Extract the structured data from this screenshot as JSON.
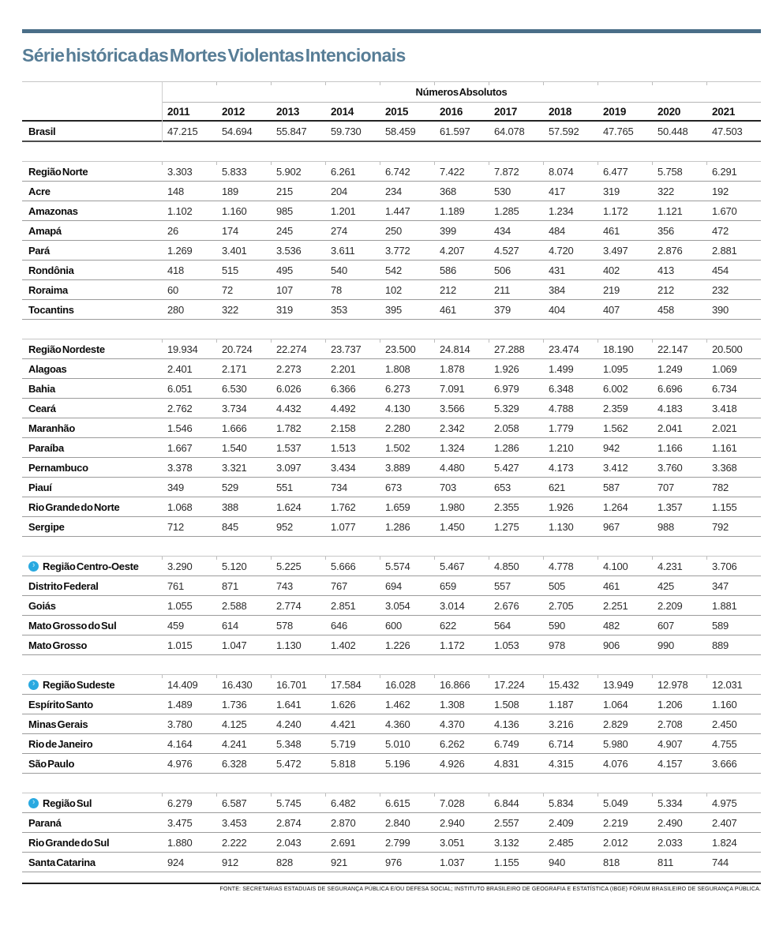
{
  "colors": {
    "accent_bar": "#4a6e88",
    "title": "#577d96",
    "region_icon": "#29a9e0",
    "region_icon_glyph": "#9edcf5"
  },
  "chart_data": {
    "type": "table",
    "title": "Série histórica das Mortes Violentas Intencionais",
    "group_header": "Números Absolutos",
    "columns": [
      "2011",
      "2012",
      "2013",
      "2014",
      "2015",
      "2016",
      "2017",
      "2018",
      "2019",
      "2020",
      "2021"
    ],
    "brasil": {
      "label": "Brasil",
      "values": [
        "47.215",
        "54.694",
        "55.847",
        "59.730",
        "58.459",
        "61.597",
        "64.078",
        "57.592",
        "47.765",
        "50.448",
        "47.503"
      ]
    },
    "sections": [
      {
        "region": {
          "label": "Região Norte",
          "icon": false,
          "values": [
            "3.303",
            "5.833",
            "5.902",
            "6.261",
            "6.742",
            "7.422",
            "7.872",
            "8.074",
            "6.477",
            "5.758",
            "6.291"
          ]
        },
        "states": [
          {
            "label": "Acre",
            "values": [
              "148",
              "189",
              "215",
              "204",
              "234",
              "368",
              "530",
              "417",
              "319",
              "322",
              "192"
            ]
          },
          {
            "label": "Amazonas",
            "values": [
              "1.102",
              "1.160",
              "985",
              "1.201",
              "1.447",
              "1.189",
              "1.285",
              "1.234",
              "1.172",
              "1.121",
              "1.670"
            ]
          },
          {
            "label": "Amapá",
            "values": [
              "26",
              "174",
              "245",
              "274",
              "250",
              "399",
              "434",
              "484",
              "461",
              "356",
              "472"
            ]
          },
          {
            "label": "Pará",
            "values": [
              "1.269",
              "3.401",
              "3.536",
              "3.611",
              "3.772",
              "4.207",
              "4.527",
              "4.720",
              "3.497",
              "2.876",
              "2.881"
            ]
          },
          {
            "label": "Rondônia",
            "values": [
              "418",
              "515",
              "495",
              "540",
              "542",
              "586",
              "506",
              "431",
              "402",
              "413",
              "454"
            ]
          },
          {
            "label": "Roraima",
            "values": [
              "60",
              "72",
              "107",
              "78",
              "102",
              "212",
              "211",
              "384",
              "219",
              "212",
              "232"
            ]
          },
          {
            "label": "Tocantins",
            "values": [
              "280",
              "322",
              "319",
              "353",
              "395",
              "461",
              "379",
              "404",
              "407",
              "458",
              "390"
            ]
          }
        ]
      },
      {
        "region": {
          "label": "Região Nordeste",
          "icon": false,
          "values": [
            "19.934",
            "20.724",
            "22.274",
            "23.737",
            "23.500",
            "24.814",
            "27.288",
            "23.474",
            "18.190",
            "22.147",
            "20.500"
          ]
        },
        "states": [
          {
            "label": "Alagoas",
            "values": [
              "2.401",
              "2.171",
              "2.273",
              "2.201",
              "1.808",
              "1.878",
              "1.926",
              "1.499",
              "1.095",
              "1.249",
              "1.069"
            ]
          },
          {
            "label": "Bahia",
            "values": [
              "6.051",
              "6.530",
              "6.026",
              "6.366",
              "6.273",
              "7.091",
              "6.979",
              "6.348",
              "6.002",
              "6.696",
              "6.734"
            ]
          },
          {
            "label": "Ceará",
            "values": [
              "2.762",
              "3.734",
              "4.432",
              "4.492",
              "4.130",
              "3.566",
              "5.329",
              "4.788",
              "2.359",
              "4.183",
              "3.418"
            ]
          },
          {
            "label": "Maranhão",
            "values": [
              "1.546",
              "1.666",
              "1.782",
              "2.158",
              "2.280",
              "2.342",
              "2.058",
              "1.779",
              "1.562",
              "2.041",
              "2.021"
            ]
          },
          {
            "label": "Paraíba",
            "values": [
              "1.667",
              "1.540",
              "1.537",
              "1.513",
              "1.502",
              "1.324",
              "1.286",
              "1.210",
              "942",
              "1.166",
              "1.161"
            ]
          },
          {
            "label": "Pernambuco",
            "values": [
              "3.378",
              "3.321",
              "3.097",
              "3.434",
              "3.889",
              "4.480",
              "5.427",
              "4.173",
              "3.412",
              "3.760",
              "3.368"
            ]
          },
          {
            "label": "Piauí",
            "values": [
              "349",
              "529",
              "551",
              "734",
              "673",
              "703",
              "653",
              "621",
              "587",
              "707",
              "782"
            ]
          },
          {
            "label": "Rio Grande do Norte",
            "values": [
              "1.068",
              "388",
              "1.624",
              "1.762",
              "1.659",
              "1.980",
              "2.355",
              "1.926",
              "1.264",
              "1.357",
              "1.155"
            ]
          },
          {
            "label": "Sergipe",
            "values": [
              "712",
              "845",
              "952",
              "1.077",
              "1.286",
              "1.450",
              "1.275",
              "1.130",
              "967",
              "988",
              "792"
            ]
          }
        ]
      },
      {
        "region": {
          "label": "Região Centro-Oeste",
          "icon": true,
          "values": [
            "3.290",
            "5.120",
            "5.225",
            "5.666",
            "5.574",
            "5.467",
            "4.850",
            "4.778",
            "4.100",
            "4.231",
            "3.706"
          ]
        },
        "states": [
          {
            "label": "Distrito Federal",
            "values": [
              "761",
              "871",
              "743",
              "767",
              "694",
              "659",
              "557",
              "505",
              "461",
              "425",
              "347"
            ]
          },
          {
            "label": "Goiás",
            "values": [
              "1.055",
              "2.588",
              "2.774",
              "2.851",
              "3.054",
              "3.014",
              "2.676",
              "2.705",
              "2.251",
              "2.209",
              "1.881"
            ]
          },
          {
            "label": "Mato Grosso do Sul",
            "values": [
              "459",
              "614",
              "578",
              "646",
              "600",
              "622",
              "564",
              "590",
              "482",
              "607",
              "589"
            ]
          },
          {
            "label": "Mato Grosso",
            "values": [
              "1.015",
              "1.047",
              "1.130",
              "1.402",
              "1.226",
              "1.172",
              "1.053",
              "978",
              "906",
              "990",
              "889"
            ]
          }
        ]
      },
      {
        "region": {
          "label": "Região Sudeste",
          "icon": true,
          "values": [
            "14.409",
            "16.430",
            "16.701",
            "17.584",
            "16.028",
            "16.866",
            "17.224",
            "15.432",
            "13.949",
            "12.978",
            "12.031"
          ]
        },
        "states": [
          {
            "label": "Espírito Santo",
            "values": [
              "1.489",
              "1.736",
              "1.641",
              "1.626",
              "1.462",
              "1.308",
              "1.508",
              "1.187",
              "1.064",
              "1.206",
              "1.160"
            ]
          },
          {
            "label": "Minas Gerais",
            "values": [
              "3.780",
              "4.125",
              "4.240",
              "4.421",
              "4.360",
              "4.370",
              "4.136",
              "3.216",
              "2.829",
              "2.708",
              "2.450"
            ]
          },
          {
            "label": "Rio de Janeiro",
            "values": [
              "4.164",
              "4.241",
              "5.348",
              "5.719",
              "5.010",
              "6.262",
              "6.749",
              "6.714",
              "5.980",
              "4.907",
              "4.755"
            ]
          },
          {
            "label": "São Paulo",
            "values": [
              "4.976",
              "6.328",
              "5.472",
              "5.818",
              "5.196",
              "4.926",
              "4.831",
              "4.315",
              "4.076",
              "4.157",
              "3.666"
            ]
          }
        ]
      },
      {
        "region": {
          "label": "Região Sul",
          "icon": true,
          "values": [
            "6.279",
            "6.587",
            "5.745",
            "6.482",
            "6.615",
            "7.028",
            "6.844",
            "5.834",
            "5.049",
            "5.334",
            "4.975"
          ]
        },
        "states": [
          {
            "label": "Paraná",
            "values": [
              "3.475",
              "3.453",
              "2.874",
              "2.870",
              "2.840",
              "2.940",
              "2.557",
              "2.409",
              "2.219",
              "2.490",
              "2.407"
            ]
          },
          {
            "label": "Rio Grande do Sul",
            "values": [
              "1.880",
              "2.222",
              "2.043",
              "2.691",
              "2.799",
              "3.051",
              "3.132",
              "2.485",
              "2.012",
              "2.033",
              "1.824"
            ]
          },
          {
            "label": "Santa Catarina",
            "values": [
              "924",
              "912",
              "828",
              "921",
              "976",
              "1.037",
              "1.155",
              "940",
              "818",
              "811",
              "744"
            ]
          }
        ]
      }
    ],
    "source_note": "FONTE: SECRETARIAS ESTADUAIS DE SEGURANÇA PÚBLICA E/OU DEFESA SOCIAL; INSTITUTO BRASILEIRO DE GEOGRAFIA E ESTATÍSTICA (IBGE) FÓRUM BRASILEIRO DE SEGURANÇA PÚBLICA."
  }
}
